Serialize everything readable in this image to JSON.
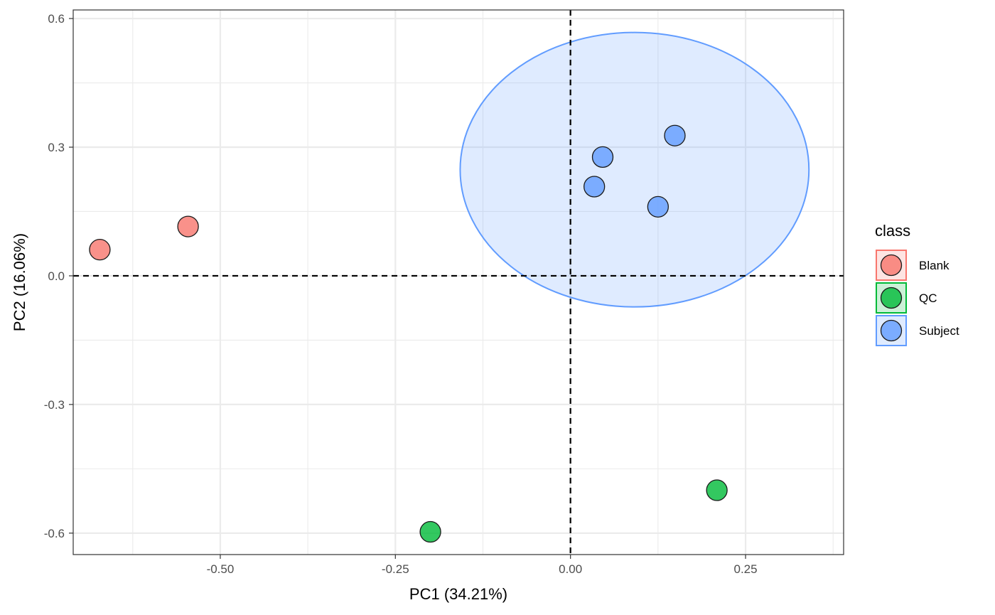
{
  "chart_data": {
    "type": "scatter",
    "xlabel": "PC1 (34.21%)",
    "ylabel": "PC2 (16.06%)",
    "xlim": [
      -0.71,
      0.39
    ],
    "ylim": [
      -0.65,
      0.62
    ],
    "x_ticks": [
      -0.5,
      -0.25,
      0.0,
      0.25
    ],
    "x_tick_labels": [
      "-0.50",
      "-0.25",
      "0.00",
      "0.25"
    ],
    "y_ticks": [
      -0.6,
      -0.3,
      0.0,
      0.3,
      0.6
    ],
    "y_tick_labels": [
      "-0.6",
      "-0.3",
      "0.0",
      "0.3",
      "0.6"
    ],
    "reference_lines": {
      "x": 0,
      "y": 0,
      "style": "dashed"
    },
    "grid": true,
    "legend": {
      "title": "class",
      "placement": "right"
    },
    "series": [
      {
        "name": "Blank",
        "color": "#F8766D",
        "points": [
          {
            "x": -0.672,
            "y": 0.061
          },
          {
            "x": -0.546,
            "y": 0.115
          }
        ]
      },
      {
        "name": "QC",
        "color": "#00BA38",
        "points": [
          {
            "x": -0.2,
            "y": -0.597
          },
          {
            "x": 0.209,
            "y": -0.5
          }
        ]
      },
      {
        "name": "Subject",
        "color": "#619CFF",
        "points": [
          {
            "x": 0.046,
            "y": 0.277
          },
          {
            "x": 0.034,
            "y": 0.208
          },
          {
            "x": 0.149,
            "y": 0.327
          },
          {
            "x": 0.125,
            "y": 0.161
          }
        ],
        "ellipse": {
          "cx": 0.0915,
          "cy": 0.2475,
          "rx": 0.249,
          "ry": 0.32
        }
      }
    ]
  }
}
